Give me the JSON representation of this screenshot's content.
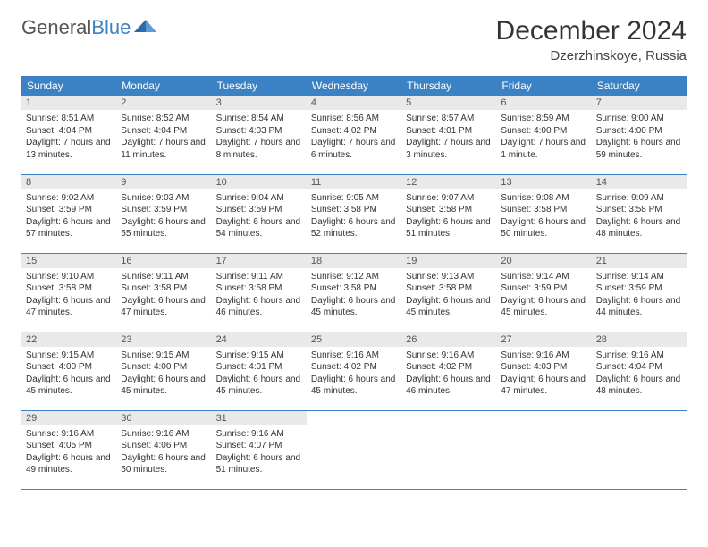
{
  "logo": {
    "text1": "General",
    "text2": "Blue"
  },
  "title": "December 2024",
  "location": "Dzerzhinskoye, Russia",
  "colors": {
    "header_bg": "#3b82c4",
    "header_text": "#ffffff",
    "daynum_bg": "#e8e9ea",
    "border": "#3b82c4",
    "background": "#ffffff",
    "body_text": "#333333"
  },
  "weekdays": [
    "Sunday",
    "Monday",
    "Tuesday",
    "Wednesday",
    "Thursday",
    "Friday",
    "Saturday"
  ],
  "days": [
    {
      "n": "1",
      "sunrise": "8:51 AM",
      "sunset": "4:04 PM",
      "daylight": "7 hours and 13 minutes."
    },
    {
      "n": "2",
      "sunrise": "8:52 AM",
      "sunset": "4:04 PM",
      "daylight": "7 hours and 11 minutes."
    },
    {
      "n": "3",
      "sunrise": "8:54 AM",
      "sunset": "4:03 PM",
      "daylight": "7 hours and 8 minutes."
    },
    {
      "n": "4",
      "sunrise": "8:56 AM",
      "sunset": "4:02 PM",
      "daylight": "7 hours and 6 minutes."
    },
    {
      "n": "5",
      "sunrise": "8:57 AM",
      "sunset": "4:01 PM",
      "daylight": "7 hours and 3 minutes."
    },
    {
      "n": "6",
      "sunrise": "8:59 AM",
      "sunset": "4:00 PM",
      "daylight": "7 hours and 1 minute."
    },
    {
      "n": "7",
      "sunrise": "9:00 AM",
      "sunset": "4:00 PM",
      "daylight": "6 hours and 59 minutes."
    },
    {
      "n": "8",
      "sunrise": "9:02 AM",
      "sunset": "3:59 PM",
      "daylight": "6 hours and 57 minutes."
    },
    {
      "n": "9",
      "sunrise": "9:03 AM",
      "sunset": "3:59 PM",
      "daylight": "6 hours and 55 minutes."
    },
    {
      "n": "10",
      "sunrise": "9:04 AM",
      "sunset": "3:59 PM",
      "daylight": "6 hours and 54 minutes."
    },
    {
      "n": "11",
      "sunrise": "9:05 AM",
      "sunset": "3:58 PM",
      "daylight": "6 hours and 52 minutes."
    },
    {
      "n": "12",
      "sunrise": "9:07 AM",
      "sunset": "3:58 PM",
      "daylight": "6 hours and 51 minutes."
    },
    {
      "n": "13",
      "sunrise": "9:08 AM",
      "sunset": "3:58 PM",
      "daylight": "6 hours and 50 minutes."
    },
    {
      "n": "14",
      "sunrise": "9:09 AM",
      "sunset": "3:58 PM",
      "daylight": "6 hours and 48 minutes."
    },
    {
      "n": "15",
      "sunrise": "9:10 AM",
      "sunset": "3:58 PM",
      "daylight": "6 hours and 47 minutes."
    },
    {
      "n": "16",
      "sunrise": "9:11 AM",
      "sunset": "3:58 PM",
      "daylight": "6 hours and 47 minutes."
    },
    {
      "n": "17",
      "sunrise": "9:11 AM",
      "sunset": "3:58 PM",
      "daylight": "6 hours and 46 minutes."
    },
    {
      "n": "18",
      "sunrise": "9:12 AM",
      "sunset": "3:58 PM",
      "daylight": "6 hours and 45 minutes."
    },
    {
      "n": "19",
      "sunrise": "9:13 AM",
      "sunset": "3:58 PM",
      "daylight": "6 hours and 45 minutes."
    },
    {
      "n": "20",
      "sunrise": "9:14 AM",
      "sunset": "3:59 PM",
      "daylight": "6 hours and 45 minutes."
    },
    {
      "n": "21",
      "sunrise": "9:14 AM",
      "sunset": "3:59 PM",
      "daylight": "6 hours and 44 minutes."
    },
    {
      "n": "22",
      "sunrise": "9:15 AM",
      "sunset": "4:00 PM",
      "daylight": "6 hours and 45 minutes."
    },
    {
      "n": "23",
      "sunrise": "9:15 AM",
      "sunset": "4:00 PM",
      "daylight": "6 hours and 45 minutes."
    },
    {
      "n": "24",
      "sunrise": "9:15 AM",
      "sunset": "4:01 PM",
      "daylight": "6 hours and 45 minutes."
    },
    {
      "n": "25",
      "sunrise": "9:16 AM",
      "sunset": "4:02 PM",
      "daylight": "6 hours and 45 minutes."
    },
    {
      "n": "26",
      "sunrise": "9:16 AM",
      "sunset": "4:02 PM",
      "daylight": "6 hours and 46 minutes."
    },
    {
      "n": "27",
      "sunrise": "9:16 AM",
      "sunset": "4:03 PM",
      "daylight": "6 hours and 47 minutes."
    },
    {
      "n": "28",
      "sunrise": "9:16 AM",
      "sunset": "4:04 PM",
      "daylight": "6 hours and 48 minutes."
    },
    {
      "n": "29",
      "sunrise": "9:16 AM",
      "sunset": "4:05 PM",
      "daylight": "6 hours and 49 minutes."
    },
    {
      "n": "30",
      "sunrise": "9:16 AM",
      "sunset": "4:06 PM",
      "daylight": "6 hours and 50 minutes."
    },
    {
      "n": "31",
      "sunrise": "9:16 AM",
      "sunset": "4:07 PM",
      "daylight": "6 hours and 51 minutes."
    }
  ],
  "labels": {
    "sunrise": "Sunrise:",
    "sunset": "Sunset:",
    "daylight": "Daylight:"
  }
}
